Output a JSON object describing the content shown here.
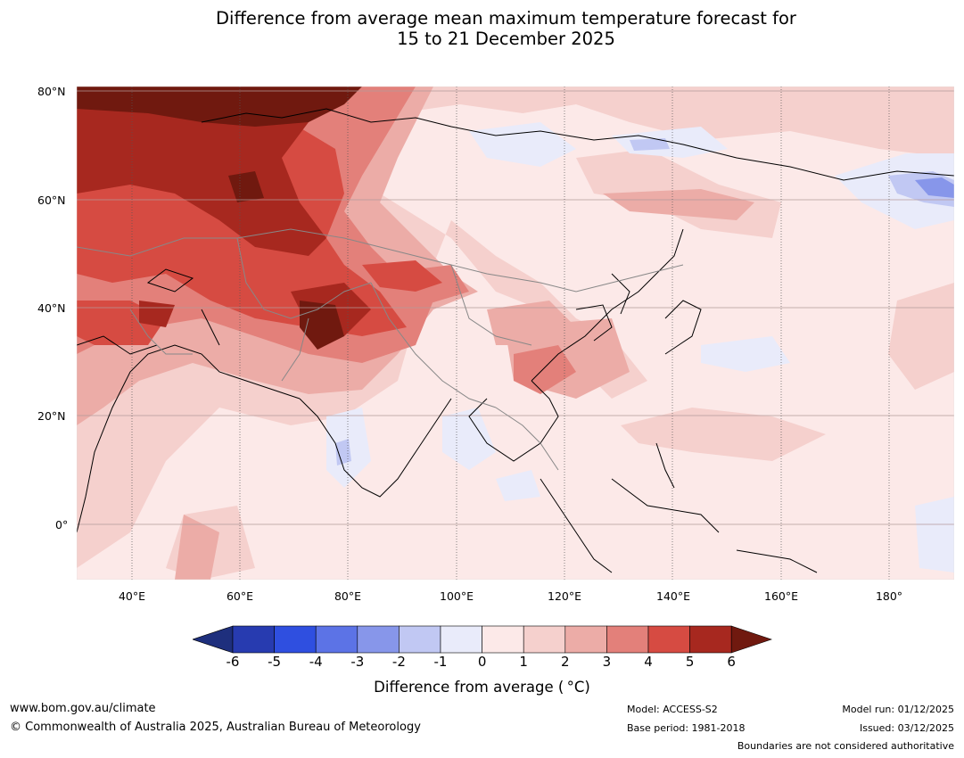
{
  "title": {
    "line1": "Difference from average mean maximum temperature forecast for",
    "line2": "15 to 21 December 2025"
  },
  "axes": {
    "lat_labels": [
      "80°N",
      "60°N",
      "40°N",
      "20°N",
      "0°"
    ],
    "lon_labels": [
      "40°E",
      "60°E",
      "80°E",
      "100°E",
      "120°E",
      "140°E",
      "160°E",
      "180°"
    ]
  },
  "colorbar": {
    "label": "Difference from average ( °C)",
    "ticks": [
      "-6",
      "-5",
      "-4",
      "-3",
      "-2",
      "-1",
      "0",
      "1",
      "2",
      "3",
      "4",
      "5",
      "6"
    ],
    "colors": [
      "#1e2f7d",
      "#273bb0",
      "#2f4fe0",
      "#5c73e6",
      "#8796ea",
      "#c1c8f3",
      "#e9ebfa",
      "#fce9e8",
      "#f5d0cd",
      "#ecaca7",
      "#e3807a",
      "#d64b42",
      "#a7281f",
      "#70190f"
    ]
  },
  "footer": {
    "website": "www.bom.gov.au/climate",
    "copyright": "© Commonwealth of Australia 2025, Australian Bureau of Meteorology",
    "model": "Model: ACCESS-S2",
    "base_period": "Base period: 1981-2018",
    "model_run": "Model run: 01/12/2025",
    "issued": "Issued: 03/12/2025",
    "disclaimer": "Boundaries are not considered authoritative"
  }
}
